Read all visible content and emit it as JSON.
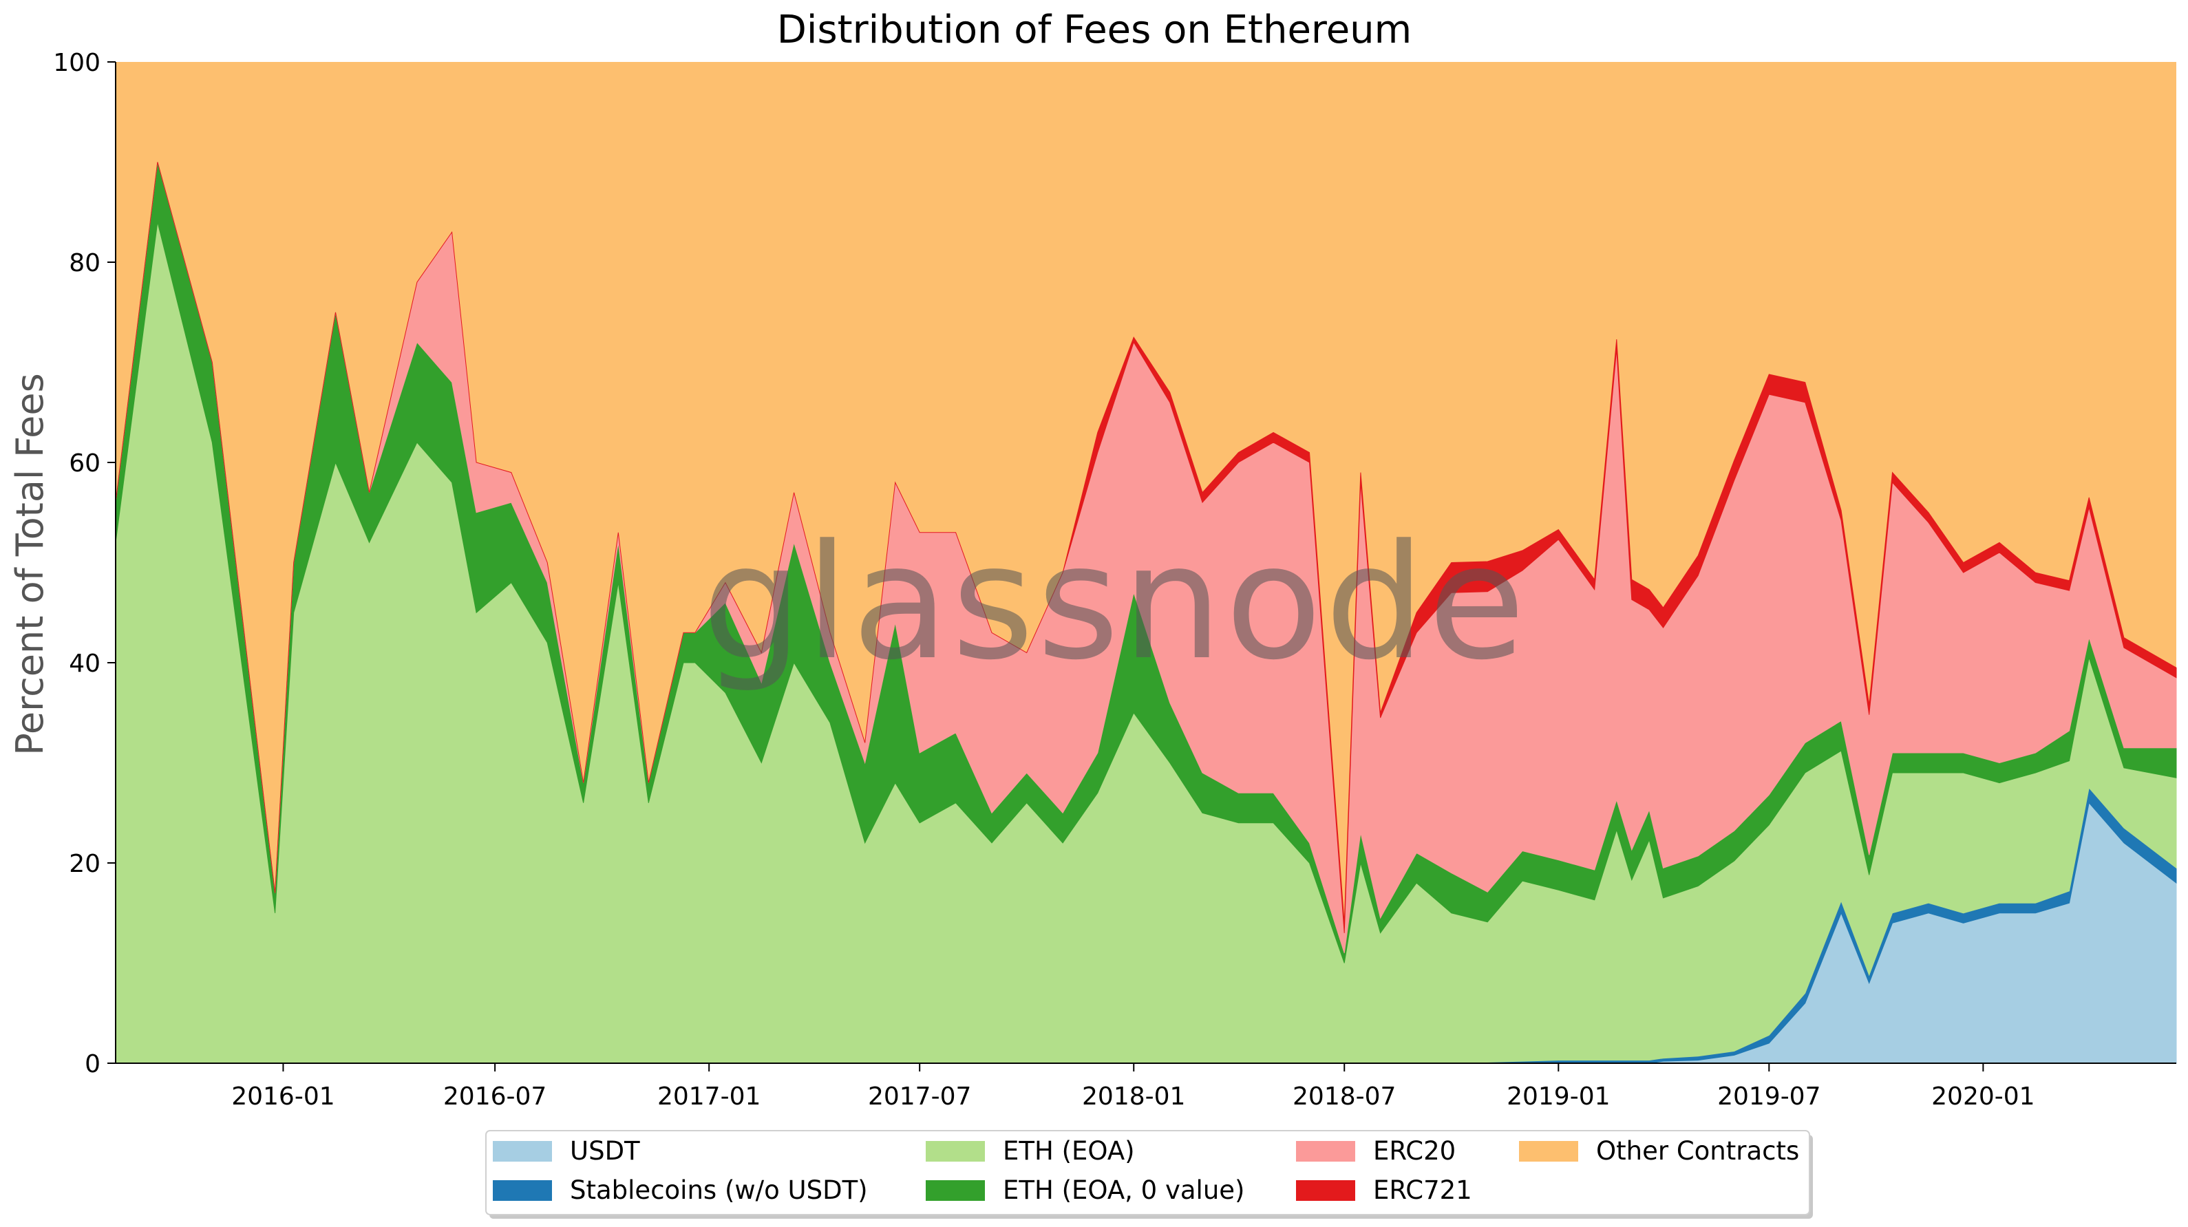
{
  "watermark": "glassnode",
  "chart_data": {
    "type": "area",
    "stacked": true,
    "title": "Distribution of Fees on Ethereum",
    "xlabel": "",
    "ylabel": "Percent of Total Fees",
    "ylim": [
      0,
      100
    ],
    "xlim": [
      "2015-08-10",
      "2020-06-15"
    ],
    "yticks": [
      0,
      20,
      40,
      60,
      80,
      100
    ],
    "xticks": [
      "2016-01",
      "2016-07",
      "2017-01",
      "2017-07",
      "2018-01",
      "2018-07",
      "2019-01",
      "2019-07",
      "2020-01"
    ],
    "grid": false,
    "legend_position": "bottom-center",
    "x": [
      "2015-08-10",
      "2015-09-15",
      "2015-11-01",
      "2015-12-25",
      "2016-01-10",
      "2016-02-15",
      "2016-03-15",
      "2016-04-25",
      "2016-05-25",
      "2016-06-15",
      "2016-07-15",
      "2016-08-15",
      "2016-09-15",
      "2016-10-15",
      "2016-11-10",
      "2016-12-10",
      "2016-12-20",
      "2017-01-15",
      "2017-02-15",
      "2017-03-15",
      "2017-04-15",
      "2017-05-15",
      "2017-06-10",
      "2017-07-01",
      "2017-08-01",
      "2017-09-01",
      "2017-10-01",
      "2017-11-01",
      "2017-12-01",
      "2018-01-01",
      "2018-02-01",
      "2018-03-01",
      "2018-04-01",
      "2018-05-01",
      "2018-06-01",
      "2018-07-01",
      "2018-07-15",
      "2018-08-01",
      "2018-09-01",
      "2018-10-01",
      "2018-11-01",
      "2018-12-01",
      "2019-01-01",
      "2019-02-01",
      "2019-02-20",
      "2019-03-05",
      "2019-03-20",
      "2019-04-01",
      "2019-05-01",
      "2019-06-01",
      "2019-07-01",
      "2019-08-01",
      "2019-09-01",
      "2019-09-25",
      "2019-10-15",
      "2019-11-15",
      "2019-12-15",
      "2020-01-15",
      "2020-02-15",
      "2020-03-15",
      "2020-04-01",
      "2020-05-01",
      "2020-06-15"
    ],
    "series": [
      {
        "name": "USDT",
        "color": "#a6cee3",
        "values": [
          0,
          0,
          0,
          0,
          0,
          0,
          0,
          0,
          0,
          0,
          0,
          0,
          0,
          0,
          0,
          0,
          0,
          0,
          0,
          0,
          0,
          0,
          0,
          0,
          0,
          0,
          0,
          0,
          0,
          0,
          0,
          0,
          0,
          0,
          0,
          0,
          0,
          0,
          0,
          0,
          0,
          0,
          0,
          0,
          0,
          0,
          0,
          0.2,
          0.3,
          0.8,
          2,
          6,
          15,
          8,
          14,
          15,
          14,
          15,
          15,
          16,
          26,
          22,
          18
        ]
      },
      {
        "name": "Stablecoins (w/o USDT)",
        "color": "#1f78b4",
        "values": [
          0,
          0,
          0,
          0,
          0,
          0,
          0,
          0,
          0,
          0,
          0,
          0,
          0,
          0,
          0,
          0,
          0,
          0,
          0,
          0,
          0,
          0,
          0,
          0,
          0,
          0,
          0,
          0,
          0,
          0,
          0,
          0,
          0,
          0,
          0,
          0,
          0,
          0,
          0,
          0,
          0.1,
          0.2,
          0.3,
          0.3,
          0.3,
          0.3,
          0.3,
          0.3,
          0.4,
          0.4,
          0.8,
          1,
          1.2,
          0.8,
          1,
          1,
          1,
          1,
          1,
          1.2,
          1.5,
          1.5,
          1.5
        ]
      },
      {
        "name": "ETH (EOA)",
        "color": "#b2df8a",
        "values": [
          52,
          84,
          62,
          15,
          45,
          60,
          52,
          62,
          58,
          45,
          48,
          42,
          26,
          48,
          26,
          40,
          40,
          37,
          30,
          40,
          34,
          22,
          28,
          24,
          26,
          22,
          26,
          22,
          27,
          35,
          30,
          25,
          24,
          24,
          20,
          10,
          20,
          13,
          18,
          15,
          14,
          18,
          17,
          16,
          23,
          18,
          22,
          16,
          17,
          19,
          21,
          22,
          15,
          10,
          14,
          13,
          14,
          12,
          13,
          13,
          13,
          6,
          9
        ]
      },
      {
        "name": "ETH (EOA, 0 value)",
        "color": "#33a02c",
        "values": [
          4,
          6,
          8,
          2,
          5,
          15,
          5,
          10,
          10,
          10,
          8,
          6,
          2,
          4,
          2,
          3,
          3,
          9,
          8,
          12,
          6,
          8,
          16,
          7,
          7,
          3,
          3,
          3,
          4,
          12,
          6,
          4,
          3,
          3,
          2,
          1,
          3,
          1.5,
          3,
          4,
          3,
          3,
          3,
          3,
          3,
          3,
          3,
          3,
          3,
          3,
          3,
          3,
          3,
          2,
          2,
          2,
          2,
          2,
          2,
          3,
          2,
          2,
          3
        ]
      },
      {
        "name": "ERC20",
        "color": "#fb9a99",
        "values": [
          0,
          0,
          0,
          0,
          0,
          0,
          0,
          6,
          15,
          5,
          3,
          2,
          0,
          1,
          0,
          0,
          0,
          2,
          3,
          5,
          3,
          2,
          14,
          22,
          20,
          18,
          12,
          24,
          30,
          25,
          30,
          27,
          33,
          35,
          38,
          2,
          35,
          20,
          22,
          28,
          30,
          28,
          32,
          28,
          45,
          25,
          20,
          24,
          28,
          35,
          40,
          34,
          20,
          14,
          27,
          23,
          18,
          21,
          17,
          14,
          13,
          10,
          7
        ]
      },
      {
        "name": "ERC721",
        "color": "#e31a1c",
        "values": [
          0,
          0,
          0,
          0,
          0,
          0,
          0,
          0,
          0,
          0,
          0,
          0,
          0,
          0,
          0,
          0,
          0,
          0,
          0,
          0,
          0,
          0,
          0,
          0,
          0,
          0,
          0,
          0,
          2,
          0.5,
          1,
          1,
          1,
          1,
          1,
          1,
          1,
          0.5,
          2,
          3,
          3,
          2,
          1,
          1,
          1,
          2,
          2,
          2,
          2,
          2,
          2,
          2,
          1,
          1,
          1,
          1,
          1,
          1,
          1,
          1,
          1,
          1,
          1
        ]
      }
    ],
    "remainder_series": {
      "name": "Other Contracts",
      "color": "#fdbf6f"
    }
  }
}
